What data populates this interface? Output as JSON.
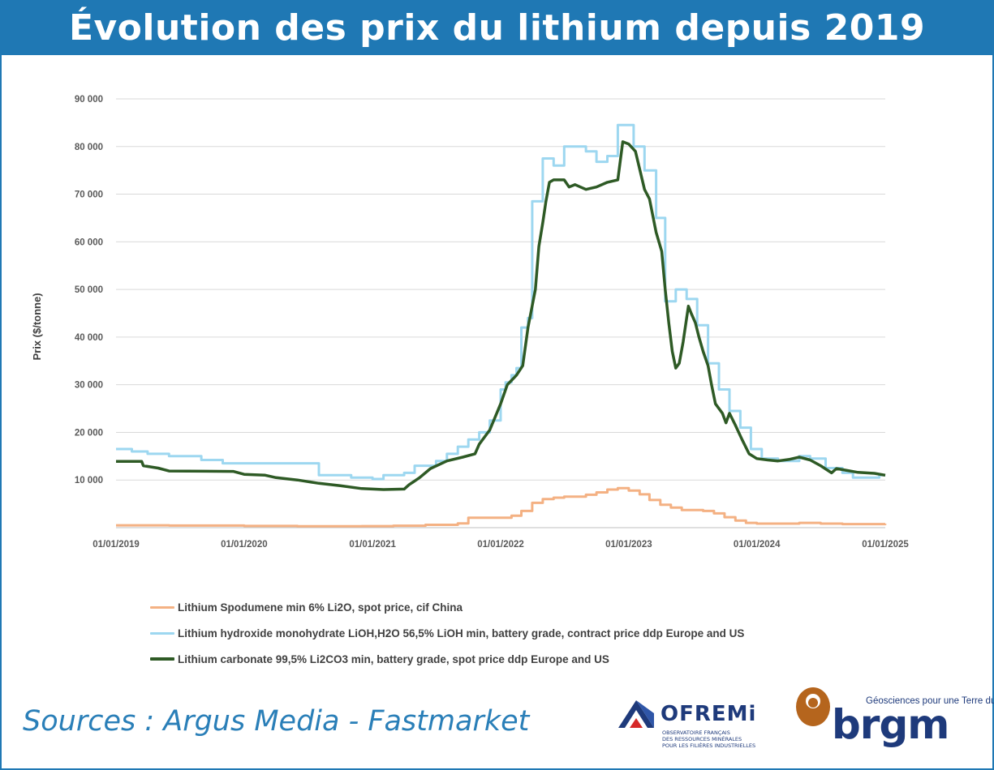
{
  "title": "Évolution des prix du lithium depuis 2019",
  "sources": "Sources : Argus Media - Fastmarket",
  "logos": {
    "ofremi": {
      "name": "OFREMi",
      "subtitle_lines": [
        "OBSERVATOIRE FRANÇAIS",
        "DES RESSOURCES MINÉRALES",
        "POUR LES FILIÈRES INDUSTRIELLES"
      ]
    },
    "brgm": {
      "name": "brgm",
      "tagline": "Géosciences pour une Terre durable"
    }
  },
  "colors": {
    "title_bg": "#1f78b4",
    "spodumene": "#f4b183",
    "hydroxide": "#9dd7f0",
    "carbonate": "#2e5a25",
    "sources_text": "#2a7fb8"
  },
  "chart_data": {
    "type": "line",
    "ylabel": "Prix ($/tonne)",
    "xlabel": "",
    "ylim": [
      0,
      90000
    ],
    "yticks": [
      10000,
      20000,
      30000,
      40000,
      50000,
      60000,
      70000,
      80000,
      90000
    ],
    "ytick_labels": [
      "10 000",
      "20 000",
      "30 000",
      "40 000",
      "50 000",
      "60 000",
      "70 000",
      "80 000",
      "90 000"
    ],
    "xlim": [
      "2019-01-01",
      "2025-01-01"
    ],
    "xticks": [
      "2019-01-01",
      "2020-01-01",
      "2021-01-01",
      "2022-01-01",
      "2023-01-01",
      "2024-01-01",
      "2025-01-01"
    ],
    "xtick_labels": [
      "01/01/2019",
      "01/01/2020",
      "01/01/2021",
      "01/01/2022",
      "01/01/2023",
      "01/01/2024",
      "01/01/2025"
    ],
    "grid": "horizontal",
    "legend_position": "bottom",
    "series": [
      {
        "name": "Lithium Spodumene min 6% Li2O, spot price, cif China",
        "color": "#f4b183",
        "step": true,
        "points": [
          [
            "2019-01-01",
            500
          ],
          [
            "2019-06-01",
            450
          ],
          [
            "2020-01-01",
            350
          ],
          [
            "2020-06-01",
            300
          ],
          [
            "2020-12-01",
            320
          ],
          [
            "2021-03-01",
            400
          ],
          [
            "2021-06-01",
            600
          ],
          [
            "2021-09-01",
            900
          ],
          [
            "2021-10-01",
            2100
          ],
          [
            "2022-02-01",
            2500
          ],
          [
            "2022-03-01",
            3500
          ],
          [
            "2022-04-01",
            5200
          ],
          [
            "2022-05-01",
            6000
          ],
          [
            "2022-06-01",
            6300
          ],
          [
            "2022-07-01",
            6500
          ],
          [
            "2022-09-01",
            6900
          ],
          [
            "2022-10-01",
            7400
          ],
          [
            "2022-11-01",
            8000
          ],
          [
            "2022-12-01",
            8300
          ],
          [
            "2023-01-01",
            7800
          ],
          [
            "2023-02-01",
            7000
          ],
          [
            "2023-03-01",
            5800
          ],
          [
            "2023-04-01",
            4800
          ],
          [
            "2023-05-01",
            4200
          ],
          [
            "2023-06-01",
            3700
          ],
          [
            "2023-08-01",
            3500
          ],
          [
            "2023-09-01",
            3000
          ],
          [
            "2023-10-01",
            2200
          ],
          [
            "2023-11-01",
            1500
          ],
          [
            "2023-12-01",
            1000
          ],
          [
            "2024-01-01",
            850
          ],
          [
            "2024-03-01",
            850
          ],
          [
            "2024-05-01",
            1000
          ],
          [
            "2024-07-01",
            850
          ],
          [
            "2024-09-01",
            750
          ],
          [
            "2024-11-01",
            750
          ],
          [
            "2025-01-01",
            800
          ]
        ]
      },
      {
        "name": "Lithium hydroxide monohydrate LiOH,H2O 56,5% LiOH min, battery grade, contract price ddp Europe and US",
        "color": "#9dd7f0",
        "step": true,
        "points": [
          [
            "2019-01-01",
            16500
          ],
          [
            "2019-02-15",
            16000
          ],
          [
            "2019-04-01",
            15500
          ],
          [
            "2019-06-01",
            15000
          ],
          [
            "2019-09-01",
            14200
          ],
          [
            "2019-11-01",
            13500
          ],
          [
            "2020-05-01",
            13500
          ],
          [
            "2020-08-01",
            11000
          ],
          [
            "2020-11-01",
            10500
          ],
          [
            "2021-01-01",
            10200
          ],
          [
            "2021-02-01",
            11000
          ],
          [
            "2021-04-01",
            11500
          ],
          [
            "2021-05-01",
            13000
          ],
          [
            "2021-07-01",
            14000
          ],
          [
            "2021-08-01",
            15500
          ],
          [
            "2021-09-01",
            17000
          ],
          [
            "2021-10-01",
            18500
          ],
          [
            "2021-11-01",
            20000
          ],
          [
            "2021-12-01",
            22500
          ],
          [
            "2022-01-01",
            29000
          ],
          [
            "2022-01-15",
            30500
          ],
          [
            "2022-02-01",
            32000
          ],
          [
            "2022-02-15",
            33500
          ],
          [
            "2022-03-01",
            42000
          ],
          [
            "2022-03-20",
            44000
          ],
          [
            "2022-04-01",
            68500
          ],
          [
            "2022-05-01",
            77500
          ],
          [
            "2022-06-01",
            76000
          ],
          [
            "2022-07-01",
            80000
          ],
          [
            "2022-09-01",
            79000
          ],
          [
            "2022-10-01",
            76800
          ],
          [
            "2022-11-01",
            78000
          ],
          [
            "2022-12-01",
            84500
          ],
          [
            "2023-01-15",
            80000
          ],
          [
            "2023-02-15",
            75000
          ],
          [
            "2023-03-20",
            65000
          ],
          [
            "2023-04-15",
            47500
          ],
          [
            "2023-05-15",
            50000
          ],
          [
            "2023-06-15",
            48000
          ],
          [
            "2023-07-15",
            42500
          ],
          [
            "2023-08-15",
            34500
          ],
          [
            "2023-09-15",
            29000
          ],
          [
            "2023-10-15",
            24500
          ],
          [
            "2023-11-15",
            21000
          ],
          [
            "2023-12-15",
            16500
          ],
          [
            "2024-01-15",
            14500
          ],
          [
            "2024-03-01",
            14000
          ],
          [
            "2024-05-01",
            15000
          ],
          [
            "2024-06-01",
            14500
          ],
          [
            "2024-07-15",
            12500
          ],
          [
            "2024-09-01",
            11500
          ],
          [
            "2024-10-01",
            10500
          ],
          [
            "2024-12-15",
            11000
          ],
          [
            "2025-01-01",
            11000
          ]
        ]
      },
      {
        "name": "Lithium carbonate 99,5% Li2CO3 min, battery grade, spot price ddp Europe and US",
        "color": "#2e5a25",
        "step": false,
        "points": [
          [
            "2019-01-01",
            13900
          ],
          [
            "2019-03-15",
            13900
          ],
          [
            "2019-03-20",
            13000
          ],
          [
            "2019-05-01",
            12500
          ],
          [
            "2019-06-01",
            11900
          ],
          [
            "2019-12-01",
            11800
          ],
          [
            "2020-01-01",
            11200
          ],
          [
            "2020-03-01",
            11000
          ],
          [
            "2020-04-01",
            10500
          ],
          [
            "2020-06-01",
            10000
          ],
          [
            "2020-08-01",
            9300
          ],
          [
            "2020-10-01",
            8800
          ],
          [
            "2020-12-01",
            8200
          ],
          [
            "2021-02-01",
            8000
          ],
          [
            "2021-04-01",
            8100
          ],
          [
            "2021-04-15",
            9000
          ],
          [
            "2021-05-15",
            10500
          ],
          [
            "2021-06-15",
            12400
          ],
          [
            "2021-08-01",
            14000
          ],
          [
            "2021-09-15",
            14800
          ],
          [
            "2021-10-20",
            15500
          ],
          [
            "2021-11-01",
            17500
          ],
          [
            "2021-12-01",
            20500
          ],
          [
            "2022-01-01",
            26000
          ],
          [
            "2022-01-20",
            30000
          ],
          [
            "2022-02-15",
            32000
          ],
          [
            "2022-03-05",
            34000
          ],
          [
            "2022-03-20",
            42000
          ],
          [
            "2022-04-10",
            50000
          ],
          [
            "2022-04-20",
            59000
          ],
          [
            "2022-05-01",
            64000
          ],
          [
            "2022-05-10",
            68500
          ],
          [
            "2022-05-20",
            72500
          ],
          [
            "2022-06-01",
            73000
          ],
          [
            "2022-07-01",
            73000
          ],
          [
            "2022-07-15",
            71500
          ],
          [
            "2022-08-01",
            72000
          ],
          [
            "2022-09-01",
            71000
          ],
          [
            "2022-10-01",
            71500
          ],
          [
            "2022-11-01",
            72500
          ],
          [
            "2022-12-01",
            73000
          ],
          [
            "2022-12-15",
            81000
          ],
          [
            "2023-01-01",
            80500
          ],
          [
            "2023-01-20",
            79000
          ],
          [
            "2023-02-15",
            71000
          ],
          [
            "2023-03-01",
            69000
          ],
          [
            "2023-03-20",
            62000
          ],
          [
            "2023-04-05",
            58000
          ],
          [
            "2023-04-15",
            50000
          ],
          [
            "2023-04-25",
            43000
          ],
          [
            "2023-05-05",
            37000
          ],
          [
            "2023-05-15",
            33500
          ],
          [
            "2023-05-25",
            34500
          ],
          [
            "2023-06-05",
            39000
          ],
          [
            "2023-06-15",
            44000
          ],
          [
            "2023-06-20",
            46500
          ],
          [
            "2023-06-28",
            45000
          ],
          [
            "2023-07-10",
            43000
          ],
          [
            "2023-07-20",
            40000
          ],
          [
            "2023-08-01",
            37000
          ],
          [
            "2023-08-15",
            34000
          ],
          [
            "2023-08-25",
            30000
          ],
          [
            "2023-09-05",
            26000
          ],
          [
            "2023-09-25",
            24000
          ],
          [
            "2023-10-05",
            22000
          ],
          [
            "2023-10-15",
            24000
          ],
          [
            "2023-11-01",
            21500
          ],
          [
            "2023-11-20",
            18500
          ],
          [
            "2023-12-10",
            15500
          ],
          [
            "2024-01-01",
            14500
          ],
          [
            "2024-02-01",
            14200
          ],
          [
            "2024-03-01",
            14000
          ],
          [
            "2024-04-01",
            14300
          ],
          [
            "2024-05-01",
            14800
          ],
          [
            "2024-06-01",
            14200
          ],
          [
            "2024-07-01",
            13000
          ],
          [
            "2024-08-01",
            11500
          ],
          [
            "2024-08-15",
            12400
          ],
          [
            "2024-09-15",
            12000
          ],
          [
            "2024-10-15",
            11600
          ],
          [
            "2024-12-01",
            11400
          ],
          [
            "2025-01-01",
            11000
          ]
        ]
      }
    ]
  }
}
